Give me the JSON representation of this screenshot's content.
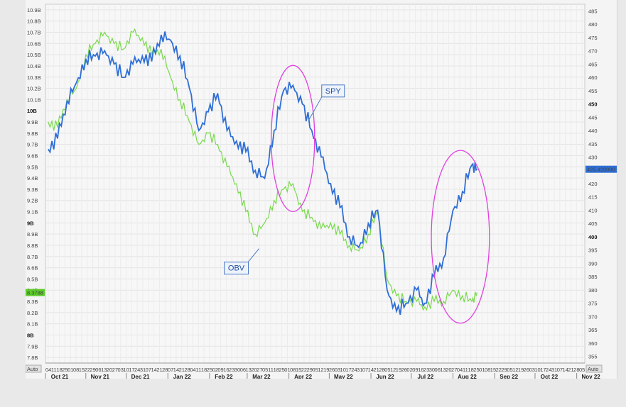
{
  "chart_data": {
    "type": "line",
    "left_axis": {
      "ticks": [
        "10.9B",
        "10.8B",
        "10.7B",
        "10.6B",
        "10.5B",
        "10.4B",
        "10.3B",
        "10.2B",
        "10.1B",
        "10B",
        "9.9B",
        "9.8B",
        "9.7B",
        "9.6B",
        "9.5B",
        "9.4B",
        "9.3B",
        "9.2B",
        "9.1B",
        "9B",
        "8.9B",
        "8.8B",
        "8.7B",
        "8.6B",
        "8.5B",
        "8.4B",
        "8.3B",
        "8.2B",
        "8.1B",
        "8B",
        "7.9B",
        "7.8B"
      ],
      "bold_ticks": [
        "10B",
        "9B",
        "8B"
      ],
      "ylim": [
        7.75,
        10.95
      ],
      "badge": "8.3788"
    },
    "right_axis": {
      "ticks": [
        485,
        480,
        475,
        470,
        465,
        460,
        455,
        450,
        445,
        440,
        435,
        430,
        425,
        420,
        415,
        410,
        405,
        400,
        395,
        390,
        385,
        380,
        375,
        370,
        365,
        360,
        355
      ],
      "bold_ticks": [
        450,
        400
      ],
      "ylim": [
        352.5,
        487.5
      ],
      "badge": "425.420000"
    },
    "x_axis": {
      "day_ticks": [
        "04",
        "11",
        "18",
        "25",
        "01",
        "08",
        "15",
        "22",
        "29",
        "06",
        "13",
        "20",
        "27",
        "03",
        "10",
        "17",
        "24",
        "31",
        "07",
        "14",
        "21",
        "28",
        "07",
        "14",
        "21",
        "28",
        "04",
        "11",
        "18",
        "25",
        "02",
        "09",
        "16",
        "23",
        "30",
        "06",
        "13",
        "20",
        "27",
        "05",
        "11",
        "18",
        "25",
        "01",
        "08",
        "15",
        "22",
        "29",
        "05",
        "12",
        "19",
        "26",
        "03",
        "10",
        "17",
        "24",
        "31",
        "07",
        "14",
        "21",
        "28",
        "05",
        "12",
        "19",
        "26",
        "02",
        "09",
        "16",
        "23",
        "30",
        "06",
        "13",
        "20",
        "27",
        "04",
        "11",
        "18",
        "25",
        "01",
        "08",
        "15",
        "22",
        "29",
        "05",
        "12",
        "19",
        "26",
        "03",
        "10",
        "17",
        "24",
        "31",
        "07",
        "14",
        "21",
        "28",
        "05"
      ],
      "months": [
        "Oct 21",
        "Nov 21",
        "Dec 21",
        "Jan 22",
        "Feb 22",
        "Mar 22",
        "Apr 22",
        "May 22",
        "Jun 22",
        "Jul 22",
        "Aug 22",
        "Sep 22",
        "Oct 22",
        "Nov 22"
      ],
      "corner_left": "Auto",
      "corner_right": "Auto"
    },
    "series": [
      {
        "name": "SPY",
        "color": "#2f6fd6",
        "axis": "right",
        "x": [
          "2021-10-04",
          "2021-10-11",
          "2021-10-18",
          "2021-10-25",
          "2021-11-01",
          "2021-11-08",
          "2021-11-15",
          "2021-11-22",
          "2021-11-29",
          "2021-12-06",
          "2021-12-13",
          "2021-12-20",
          "2021-12-27",
          "2022-01-03",
          "2022-01-10",
          "2022-01-17",
          "2022-01-24",
          "2022-01-31",
          "2022-02-07",
          "2022-02-14",
          "2022-02-21",
          "2022-02-28",
          "2022-03-07",
          "2022-03-14",
          "2022-03-21",
          "2022-03-28",
          "2022-04-04",
          "2022-04-11",
          "2022-04-18",
          "2022-04-25",
          "2022-05-02",
          "2022-05-09",
          "2022-05-16",
          "2022-05-23",
          "2022-05-30",
          "2022-06-06",
          "2022-06-13",
          "2022-06-20",
          "2022-06-27",
          "2022-07-05",
          "2022-07-11",
          "2022-07-18",
          "2022-07-25",
          "2022-08-01",
          "2022-08-08",
          "2022-08-15",
          "2022-08-19"
        ],
        "values": [
          433,
          437,
          451,
          458,
          467,
          468,
          470,
          465,
          460,
          465,
          468,
          466,
          476,
          474,
          468,
          456,
          440,
          447,
          454,
          440,
          436,
          432,
          425,
          422,
          440,
          455,
          457,
          450,
          440,
          430,
          420,
          411,
          400,
          396,
          405,
          410,
          380,
          372,
          375,
          380,
          375,
          385,
          392,
          410,
          417,
          427,
          425.42
        ]
      },
      {
        "name": "OBV",
        "color": "#79d94c",
        "axis": "left",
        "x": [
          "2021-10-04",
          "2021-10-11",
          "2021-10-18",
          "2021-10-25",
          "2021-11-01",
          "2021-11-08",
          "2021-11-15",
          "2021-11-22",
          "2021-11-29",
          "2021-12-06",
          "2021-12-13",
          "2021-12-20",
          "2021-12-27",
          "2022-01-03",
          "2022-01-10",
          "2022-01-17",
          "2022-01-24",
          "2022-01-31",
          "2022-02-07",
          "2022-02-14",
          "2022-02-21",
          "2022-02-28",
          "2022-03-07",
          "2022-03-14",
          "2022-03-21",
          "2022-03-28",
          "2022-04-04",
          "2022-04-11",
          "2022-04-18",
          "2022-04-25",
          "2022-05-02",
          "2022-05-09",
          "2022-05-16",
          "2022-05-23",
          "2022-05-30",
          "2022-06-06",
          "2022-06-13",
          "2022-06-20",
          "2022-06-27",
          "2022-07-05",
          "2022-07-11",
          "2022-07-18",
          "2022-07-25",
          "2022-08-01",
          "2022-08-08",
          "2022-08-15",
          "2022-08-19"
        ],
        "values": [
          9.9,
          9.85,
          10.1,
          10.2,
          10.5,
          10.6,
          10.7,
          10.6,
          10.55,
          10.7,
          10.65,
          10.5,
          10.55,
          10.3,
          10.1,
          9.9,
          9.7,
          9.8,
          9.7,
          9.5,
          9.35,
          9.1,
          8.9,
          9.0,
          9.2,
          9.3,
          9.35,
          9.1,
          9.05,
          8.95,
          9.0,
          8.9,
          8.8,
          8.75,
          8.9,
          9.1,
          8.5,
          8.35,
          8.3,
          8.3,
          8.25,
          8.3,
          8.3,
          8.4,
          8.35,
          8.3,
          8.3788
        ]
      }
    ],
    "annotations": [
      {
        "text": "SPY",
        "type": "callout"
      },
      {
        "text": "OBV",
        "type": "callout"
      },
      {
        "type": "ellipse",
        "color": "#e040e0",
        "x_from": "2022-03-21",
        "x_to": "2022-04-18"
      },
      {
        "type": "ellipse",
        "color": "#e040e0",
        "x_from": "2022-07-18",
        "x_to": "2022-08-26"
      }
    ],
    "grid": true
  }
}
